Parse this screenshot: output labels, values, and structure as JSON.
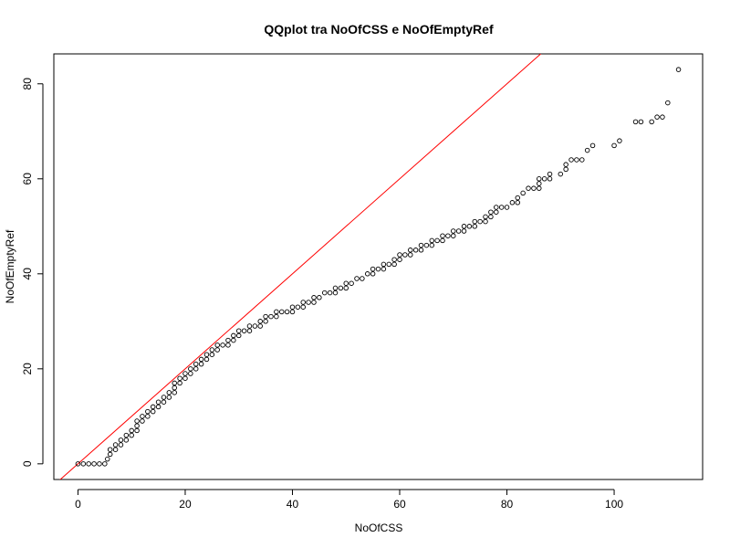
{
  "chart_data": {
    "type": "scatter",
    "title": "QQplot tra NoOfCSS e NoOfEmptyRef",
    "xlabel": "NoOfCSS",
    "ylabel": "NoOfEmptyRef",
    "xlim": [
      -4.5,
      116.5
    ],
    "ylim": [
      -3.3,
      86.3
    ],
    "xticks": [
      0,
      20,
      40,
      60,
      80,
      100
    ],
    "yticks": [
      0,
      20,
      40,
      60,
      80
    ],
    "grid": false,
    "point_color": "#000000",
    "reference_line": {
      "intercept": 0,
      "slope": 1,
      "color": "#ff0000"
    },
    "series": [
      {
        "points": [
          [
            0,
            0
          ],
          [
            1,
            0
          ],
          [
            2,
            0
          ],
          [
            3,
            0
          ],
          [
            4,
            0
          ],
          [
            5,
            0
          ],
          [
            5.5,
            1
          ],
          [
            6,
            2
          ],
          [
            6,
            3
          ],
          [
            7,
            3
          ],
          [
            7,
            4
          ],
          [
            8,
            4
          ],
          [
            8,
            5
          ],
          [
            9,
            5
          ],
          [
            9,
            6
          ],
          [
            10,
            6
          ],
          [
            10,
            7
          ],
          [
            11,
            7
          ],
          [
            11,
            8
          ],
          [
            11,
            9
          ],
          [
            12,
            9
          ],
          [
            12,
            10
          ],
          [
            13,
            10
          ],
          [
            13,
            11
          ],
          [
            14,
            11
          ],
          [
            14,
            12
          ],
          [
            15,
            12
          ],
          [
            15,
            13
          ],
          [
            16,
            13
          ],
          [
            16,
            14
          ],
          [
            17,
            14
          ],
          [
            17,
            15
          ],
          [
            18,
            15
          ],
          [
            18,
            16
          ],
          [
            18,
            17
          ],
          [
            19,
            17
          ],
          [
            19,
            18
          ],
          [
            20,
            18
          ],
          [
            20,
            19
          ],
          [
            21,
            19
          ],
          [
            21,
            20
          ],
          [
            22,
            20
          ],
          [
            22,
            21
          ],
          [
            23,
            21
          ],
          [
            23,
            22
          ],
          [
            24,
            22
          ],
          [
            24,
            23
          ],
          [
            25,
            23
          ],
          [
            25,
            24
          ],
          [
            26,
            24
          ],
          [
            26,
            25
          ],
          [
            27,
            25
          ],
          [
            28,
            25
          ],
          [
            28,
            26
          ],
          [
            29,
            26
          ],
          [
            29,
            27
          ],
          [
            30,
            27
          ],
          [
            30,
            28
          ],
          [
            31,
            28
          ],
          [
            32,
            28
          ],
          [
            32,
            29
          ],
          [
            33,
            29
          ],
          [
            34,
            29
          ],
          [
            34,
            30
          ],
          [
            35,
            30
          ],
          [
            35,
            31
          ],
          [
            36,
            31
          ],
          [
            37,
            31
          ],
          [
            37,
            32
          ],
          [
            38,
            32
          ],
          [
            39,
            32
          ],
          [
            40,
            32
          ],
          [
            40,
            33
          ],
          [
            41,
            33
          ],
          [
            42,
            33
          ],
          [
            42,
            34
          ],
          [
            43,
            34
          ],
          [
            44,
            34
          ],
          [
            44,
            35
          ],
          [
            45,
            35
          ],
          [
            46,
            36
          ],
          [
            47,
            36
          ],
          [
            48,
            36
          ],
          [
            48,
            37
          ],
          [
            49,
            37
          ],
          [
            50,
            37
          ],
          [
            50,
            38
          ],
          [
            51,
            38
          ],
          [
            52,
            39
          ],
          [
            53,
            39
          ],
          [
            54,
            40
          ],
          [
            55,
            40
          ],
          [
            55,
            41
          ],
          [
            56,
            41
          ],
          [
            57,
            41
          ],
          [
            57,
            42
          ],
          [
            58,
            42
          ],
          [
            59,
            42
          ],
          [
            59,
            43
          ],
          [
            60,
            43
          ],
          [
            60,
            44
          ],
          [
            61,
            44
          ],
          [
            62,
            44
          ],
          [
            62,
            45
          ],
          [
            63,
            45
          ],
          [
            64,
            45
          ],
          [
            64,
            46
          ],
          [
            65,
            46
          ],
          [
            66,
            46
          ],
          [
            66,
            47
          ],
          [
            67,
            47
          ],
          [
            68,
            47
          ],
          [
            68,
            48
          ],
          [
            69,
            48
          ],
          [
            70,
            48
          ],
          [
            70,
            49
          ],
          [
            71,
            49
          ],
          [
            72,
            49
          ],
          [
            72,
            50
          ],
          [
            73,
            50
          ],
          [
            74,
            50
          ],
          [
            74,
            51
          ],
          [
            75,
            51
          ],
          [
            76,
            51
          ],
          [
            76,
            52
          ],
          [
            77,
            52
          ],
          [
            77,
            53
          ],
          [
            78,
            53
          ],
          [
            78,
            54
          ],
          [
            79,
            54
          ],
          [
            80,
            54
          ],
          [
            81,
            55
          ],
          [
            82,
            55
          ],
          [
            82,
            56
          ],
          [
            83,
            57
          ],
          [
            84,
            58
          ],
          [
            85,
            58
          ],
          [
            86,
            58
          ],
          [
            86,
            59
          ],
          [
            86,
            60
          ],
          [
            87,
            60
          ],
          [
            88,
            60
          ],
          [
            88,
            61
          ],
          [
            90,
            61
          ],
          [
            91,
            62
          ],
          [
            91,
            63
          ],
          [
            92,
            64
          ],
          [
            93,
            64
          ],
          [
            94,
            64
          ],
          [
            95,
            66
          ],
          [
            96,
            67
          ],
          [
            100,
            67
          ],
          [
            101,
            68
          ],
          [
            104,
            72
          ],
          [
            105,
            72
          ],
          [
            107,
            72
          ],
          [
            108,
            73
          ],
          [
            109,
            73
          ],
          [
            110,
            76
          ],
          [
            112,
            83
          ]
        ]
      }
    ]
  }
}
